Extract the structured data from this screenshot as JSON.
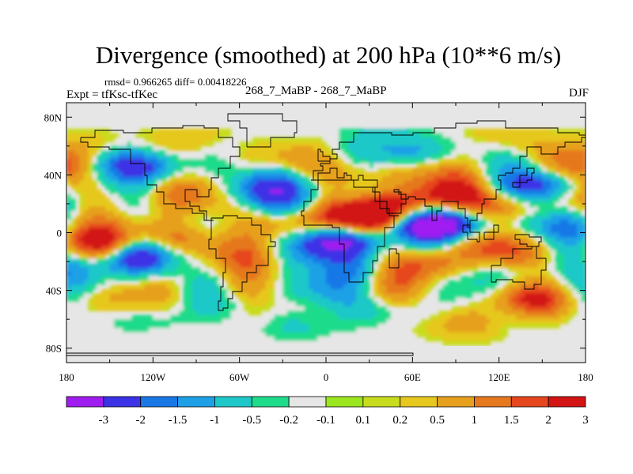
{
  "chart_data": {
    "type": "heatmap",
    "title": "Divergence (smoothed) at 200 hPa (10**6 m/s)",
    "stats_text": "rmsd= 0.966265 diff= 0.00418226",
    "left_label": "Expt = tfKsc-tfKec",
    "center_label": "268_7_MaBP - 268_7_MaBP",
    "right_label": "DJF",
    "x_ticks": [
      {
        "value": -180,
        "label": "180"
      },
      {
        "value": -120,
        "label": "120W"
      },
      {
        "value": -60,
        "label": "60W"
      },
      {
        "value": 0,
        "label": "0"
      },
      {
        "value": 60,
        "label": "60E"
      },
      {
        "value": 120,
        "label": "120E"
      },
      {
        "value": 180,
        "label": "180"
      }
    ],
    "y_ticks": [
      {
        "value": 80,
        "label": "80N"
      },
      {
        "value": 40,
        "label": "40N"
      },
      {
        "value": 0,
        "label": "0"
      },
      {
        "value": -40,
        "label": "40S"
      },
      {
        "value": -80,
        "label": "80S"
      }
    ],
    "xlim": [
      -180,
      180
    ],
    "ylim": [
      -90,
      90
    ],
    "colorbar": {
      "levels": [
        "-3",
        "-2",
        "-1.5",
        "-1",
        "-0.5",
        "-0.2",
        "-0.1",
        "0.1",
        "0.2",
        "0.5",
        "1",
        "1.5",
        "2",
        "3"
      ],
      "colors": [
        "#a01df0",
        "#3c32e6",
        "#1978e6",
        "#1ea0e6",
        "#1ec8c8",
        "#1edc8c",
        "#e6e6e6",
        "#9be61e",
        "#c8dc1e",
        "#e6c81e",
        "#e6a01e",
        "#e6781e",
        "#e6461e",
        "#d21414"
      ]
    },
    "features": [
      {
        "lon": 150,
        "lat": 32,
        "value": -2.5
      },
      {
        "lon": 90,
        "lat": 5,
        "value": -3.2
      },
      {
        "lon": 60,
        "lat": 5,
        "value": -2.5
      },
      {
        "lon": 8,
        "lat": -5,
        "value": -3.2
      },
      {
        "lon": -130,
        "lat": -17,
        "value": -3.0
      },
      {
        "lon": -40,
        "lat": 30,
        "value": -1.5
      },
      {
        "lon": -120,
        "lat": 45,
        "value": -1.3
      },
      {
        "lon": -150,
        "lat": 50,
        "value": -0.9
      },
      {
        "lon": 30,
        "lat": 10,
        "value": 3.3
      },
      {
        "lon": 50,
        "lat": 18,
        "value": 2.3
      },
      {
        "lon": 85,
        "lat": 25,
        "value": 2.3
      },
      {
        "lon": 120,
        "lat": 18,
        "value": 1.8
      },
      {
        "lon": 75,
        "lat": -22,
        "value": 2.0
      },
      {
        "lon": -100,
        "lat": -5,
        "value": 1.8
      },
      {
        "lon": -155,
        "lat": -8,
        "value": 1.6
      },
      {
        "lon": -120,
        "lat": 5,
        "value": 1.2
      },
      {
        "lon": 170,
        "lat": 45,
        "value": 1.6
      },
      {
        "lon": -170,
        "lat": 55,
        "value": 1.0
      },
      {
        "lon": 130,
        "lat": -15,
        "value": 1.2
      },
      {
        "lon": -30,
        "lat": 5,
        "value": 1.3
      },
      {
        "lon": -60,
        "lat": -40,
        "value": 1.0
      },
      {
        "lon": 140,
        "lat": -45,
        "value": 1.1
      },
      {
        "lon": 100,
        "lat": -62,
        "value": 0.8
      },
      {
        "lon": 20,
        "lat": 40,
        "value": 1.0
      },
      {
        "lon": 60,
        "lat": 55,
        "value": -1.0
      },
      {
        "lon": 0,
        "lat": -40,
        "value": -1.0
      },
      {
        "lon": -20,
        "lat": -62,
        "value": -0.9
      },
      {
        "lon": 20,
        "lat": -28,
        "value": -1.4
      },
      {
        "lon": 160,
        "lat": 5,
        "value": -1.0
      },
      {
        "lon": -20,
        "lat": 20,
        "value": -0.8
      },
      {
        "lon": 40,
        "lat": 70,
        "value": -0.6
      },
      {
        "lon": -90,
        "lat": 65,
        "value": 0.5
      },
      {
        "lon": 120,
        "lat": 70,
        "value": 0.4
      },
      {
        "lon": -110,
        "lat": -55,
        "value": -0.6
      }
    ]
  }
}
